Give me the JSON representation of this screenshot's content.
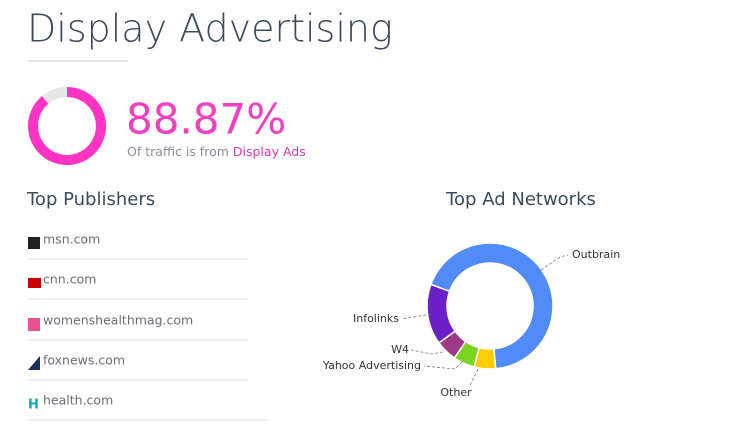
{
  "header": {
    "title": "Display Advertising"
  },
  "traffic_share": {
    "value": 88.87,
    "label": "88.87%"
  },
  "traffic_caption": {
    "prefix": "Of traffic is from",
    "highlight": "Display Ads"
  },
  "publishers": {
    "title": "Top Publishers",
    "items": [
      "msn.com",
      "cnn.com",
      "womenshealthmag.com",
      "foxnews.com",
      "health.com"
    ]
  },
  "chart_data": {
    "type": "pie",
    "title": "Top Ad Networks",
    "categories": [
      "Outbrain",
      "Other",
      "Yahoo Advertising",
      "W4",
      "Infolinks"
    ],
    "values": [
      68,
      5.5,
      5.5,
      5.5,
      15.5
    ],
    "colors": [
      "#508bf8",
      "#ffcc00",
      "#7dd322",
      "#9c3a85",
      "#6a1fc9"
    ]
  }
}
